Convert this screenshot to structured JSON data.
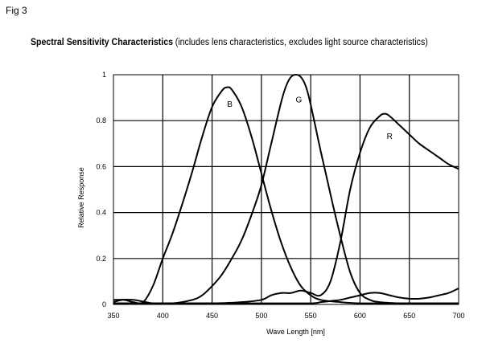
{
  "figure": {
    "label": "Fig 3"
  },
  "chart_data": {
    "type": "line",
    "title": "Spectral Sensitivity Characteristics",
    "subtitle": "(includes lens characteristics, excludes light source characteristics)",
    "xlabel": "Wave Length [nm]",
    "ylabel": "Relative Response",
    "xlim": [
      350,
      700
    ],
    "ylim": [
      0,
      1
    ],
    "xticks": [
      350,
      400,
      450,
      500,
      550,
      600,
      650,
      700
    ],
    "yticks": [
      0,
      0.2,
      0.4,
      0.6,
      0.8,
      1
    ],
    "ytick_labels": [
      "0",
      "0.2",
      "0.4",
      "0.6",
      "0.8",
      "1"
    ],
    "grid": true,
    "line_color": "#000000",
    "series": [
      {
        "name": "B",
        "x": [
          350,
          360,
          370,
          380,
          390,
          400,
          410,
          420,
          430,
          440,
          450,
          460,
          465,
          470,
          480,
          490,
          500,
          510,
          520,
          530,
          540,
          550,
          560,
          580,
          600,
          620,
          640,
          660,
          680,
          700
        ],
        "y": [
          0.01,
          0.02,
          0.01,
          0.01,
          0.08,
          0.2,
          0.31,
          0.44,
          0.58,
          0.73,
          0.86,
          0.93,
          0.945,
          0.935,
          0.86,
          0.73,
          0.57,
          0.41,
          0.27,
          0.16,
          0.08,
          0.04,
          0.02,
          0.01,
          0.005,
          0.005,
          0.005,
          0.005,
          0.005,
          0.005
        ]
      },
      {
        "name": "G",
        "x": [
          350,
          370,
          390,
          410,
          430,
          440,
          450,
          460,
          470,
          480,
          490,
          500,
          510,
          520,
          525,
          530,
          535,
          540,
          545,
          550,
          560,
          570,
          580,
          590,
          600,
          610,
          620,
          640,
          660,
          680,
          700
        ],
        "y": [
          0.02,
          0.02,
          0.005,
          0.005,
          0.02,
          0.04,
          0.08,
          0.13,
          0.2,
          0.28,
          0.39,
          0.52,
          0.7,
          0.88,
          0.95,
          0.99,
          1.0,
          0.99,
          0.95,
          0.87,
          0.67,
          0.48,
          0.3,
          0.14,
          0.05,
          0.02,
          0.01,
          0.005,
          0.005,
          0.005,
          0.005
        ]
      },
      {
        "name": "R",
        "x": [
          350,
          400,
          450,
          480,
          500,
          510,
          520,
          530,
          540,
          550,
          560,
          570,
          580,
          590,
          600,
          610,
          620,
          625,
          630,
          640,
          650,
          660,
          670,
          680,
          690,
          700
        ],
        "y": [
          0.005,
          0.005,
          0.005,
          0.01,
          0.02,
          0.04,
          0.05,
          0.05,
          0.06,
          0.05,
          0.04,
          0.1,
          0.27,
          0.5,
          0.66,
          0.77,
          0.82,
          0.83,
          0.82,
          0.78,
          0.74,
          0.7,
          0.67,
          0.64,
          0.61,
          0.59
        ]
      },
      {
        "name": "",
        "x": [
          350,
          400,
          450,
          500,
          550,
          560,
          570,
          580,
          590,
          600,
          610,
          620,
          630,
          640,
          650,
          660,
          670,
          680,
          690,
          700
        ],
        "y": [
          0.005,
          0.005,
          0.005,
          0.005,
          0.005,
          0.01,
          0.015,
          0.02,
          0.03,
          0.04,
          0.05,
          0.05,
          0.04,
          0.03,
          0.025,
          0.025,
          0.03,
          0.04,
          0.05,
          0.07
        ]
      }
    ],
    "series_label_positions": [
      {
        "name": "B",
        "x": 468,
        "y": 0.86
      },
      {
        "name": "G",
        "x": 538,
        "y": 0.88
      },
      {
        "name": "R",
        "x": 630,
        "y": 0.72
      }
    ]
  }
}
